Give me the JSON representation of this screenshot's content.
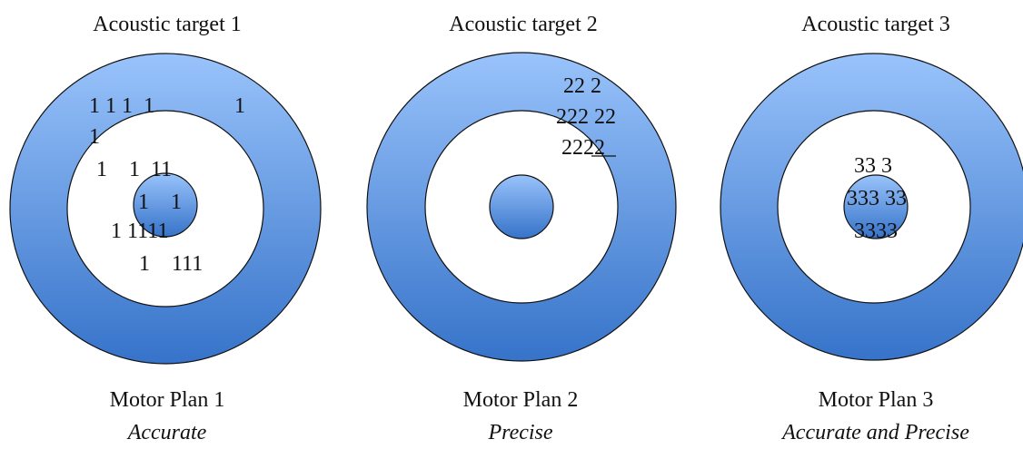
{
  "colors": {
    "ring_light": "#99c3fb",
    "ring_dark": "#3673c9",
    "inner_fill": "#ffffff",
    "outline": "#111111"
  },
  "targets": [
    {
      "title": "Acoustic target 1",
      "plan": "Motor Plan 1",
      "descriptor": "Accurate",
      "marks": [
        "1 1 1  1",
        "1",
        "1",
        "1    1  11",
        "1    1",
        "1 1111",
        "1    111"
      ]
    },
    {
      "title": "Acoustic target 2",
      "plan": "Motor Plan 2",
      "descriptor": "Precise",
      "marks": [
        "22 2",
        "222 22",
        "2222"
      ]
    },
    {
      "title": "Acoustic target 3",
      "plan": "Motor Plan 3",
      "descriptor": "Accurate and Precise",
      "marks": [
        "33 3",
        "333 33",
        "3333"
      ]
    }
  ]
}
